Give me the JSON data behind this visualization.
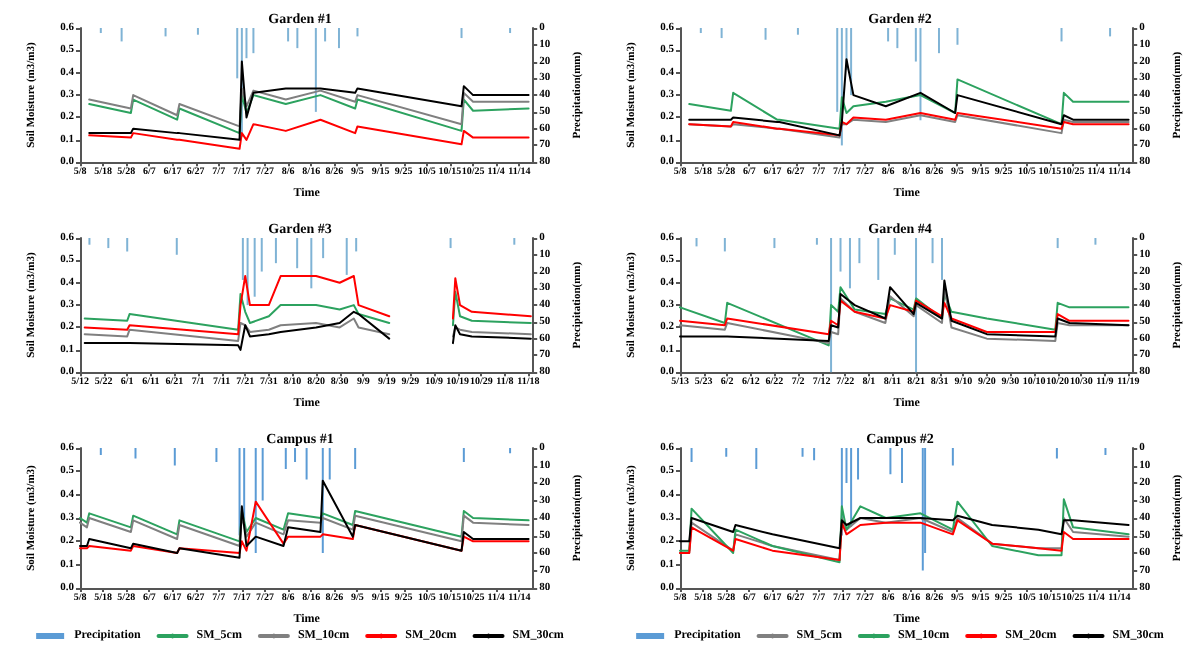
{
  "chart_data": [
    {
      "type": "line",
      "title": "Garden #1",
      "xlabel": "Time",
      "ylabel": "Soil Moisture (m3/m3)",
      "y2label": "Precipitation(mm)",
      "marker": "none",
      "line_style": "solid",
      "grid": false,
      "xlim": [
        "--05-08",
        "--11-20"
      ],
      "xticks": [
        {
          "value": "--05-08",
          "label": "5/8"
        },
        {
          "value": "--05-18",
          "label": "5/18"
        },
        {
          "value": "--05-28",
          "label": "5/28"
        },
        {
          "value": "--06-07",
          "label": "6/7"
        },
        {
          "value": "--06-17",
          "label": "6/17"
        },
        {
          "value": "--06-27",
          "label": "6/27"
        },
        {
          "value": "--07-07",
          "label": "7/7"
        },
        {
          "value": "--07-17",
          "label": "7/17"
        },
        {
          "value": "--07-27",
          "label": "7/27"
        },
        {
          "value": "--08-06",
          "label": "8/6"
        },
        {
          "value": "--08-16",
          "label": "8/16"
        },
        {
          "value": "--08-26",
          "label": "8/26"
        },
        {
          "value": "--09-05",
          "label": "9/5"
        },
        {
          "value": "--09-15",
          "label": "9/15"
        },
        {
          "value": "--09-25",
          "label": "9/25"
        },
        {
          "value": "--10-05",
          "label": "10/5"
        },
        {
          "value": "--10-15",
          "label": "10/15"
        },
        {
          "value": "--10-25",
          "label": "10/25"
        },
        {
          "value": "--11-04",
          "label": "11/4"
        },
        {
          "value": "--11-14",
          "label": "11/14"
        }
      ],
      "ylim": [
        0,
        0.6
      ],
      "yticks": [
        {
          "value": 0,
          "label": "0.0"
        },
        {
          "value": 0.1,
          "label": "0.1"
        },
        {
          "value": 0.2,
          "label": "0.2"
        },
        {
          "value": 0.3,
          "label": "0.3"
        },
        {
          "value": 0.4,
          "label": "0.4"
        },
        {
          "value": 0.5,
          "label": "0.5"
        },
        {
          "value": 0.6,
          "label": "0.6"
        }
      ],
      "y2lim": [
        80,
        0
      ],
      "y2ticks": [
        0,
        10,
        20,
        30,
        40,
        50,
        60,
        70,
        80
      ],
      "x": [
        "--05-12",
        "--05-30",
        "--05-31",
        "--06-19",
        "--06-20",
        "--07-16",
        "--07-17",
        "--07-19",
        "--07-22",
        "--08-05",
        "--08-20",
        "--09-04",
        "--09-05",
        "--10-20",
        "--10-21",
        "--10-25",
        "--11-18"
      ],
      "series": [
        {
          "type": "bar",
          "axis": "y2",
          "color": "#7fb3d5",
          "x": [
            "--05-17",
            "--05-26",
            "--06-14",
            "--06-28",
            "--07-15",
            "--07-17",
            "--07-19",
            "--07-22",
            "--08-06",
            "--08-10",
            "--08-18",
            "--08-22",
            "--08-28",
            "--09-05",
            "--10-20",
            "--11-10"
          ],
          "values": [
            3,
            8,
            5,
            4,
            30,
            65,
            18,
            15,
            8,
            12,
            50,
            8,
            12,
            5,
            6,
            3
          ]
        },
        {
          "color": "#2ca25f",
          "values": [
            0.26,
            0.22,
            0.28,
            0.19,
            0.24,
            0.13,
            0.3,
            0.22,
            0.3,
            0.26,
            0.3,
            0.24,
            0.28,
            0.14,
            0.28,
            0.23,
            0.24
          ]
        },
        {
          "color": "#808080",
          "values": [
            0.28,
            0.24,
            0.3,
            0.21,
            0.26,
            0.16,
            0.33,
            0.25,
            0.32,
            0.28,
            0.32,
            0.27,
            0.3,
            0.17,
            0.31,
            0.27,
            0.27
          ]
        },
        {
          "color": "#ff0000",
          "values": [
            0.12,
            0.11,
            0.13,
            0.1,
            0.1,
            0.06,
            0.13,
            0.1,
            0.17,
            0.14,
            0.19,
            0.13,
            0.16,
            0.08,
            0.14,
            0.11,
            0.11
          ]
        },
        {
          "color": "#000000",
          "values": [
            0.13,
            0.13,
            0.15,
            0.13,
            0.13,
            0.1,
            0.45,
            0.2,
            0.31,
            0.33,
            0.33,
            0.31,
            0.33,
            0.25,
            0.34,
            0.3,
            0.3
          ]
        }
      ]
    },
    {
      "type": "line",
      "title": "Garden #2",
      "xlabel": "Time",
      "ylabel": "Soil Moisture (m3/m3)",
      "y2label": "Precipitation(mm)",
      "marker": "none",
      "line_style": "solid",
      "grid": false,
      "xlim": [
        "--05-08",
        "--11-20"
      ],
      "xticks": [
        {
          "value": "--05-08",
          "label": "5/8"
        },
        {
          "value": "--05-18",
          "label": "5/18"
        },
        {
          "value": "--05-28",
          "label": "5/28"
        },
        {
          "value": "--06-07",
          "label": "6/7"
        },
        {
          "value": "--06-17",
          "label": "6/17"
        },
        {
          "value": "--06-27",
          "label": "6/27"
        },
        {
          "value": "--07-07",
          "label": "7/7"
        },
        {
          "value": "--07-17",
          "label": "7/17"
        },
        {
          "value": "--07-27",
          "label": "7/27"
        },
        {
          "value": "--08-06",
          "label": "8/6"
        },
        {
          "value": "--08-16",
          "label": "8/16"
        },
        {
          "value": "--08-26",
          "label": "8/26"
        },
        {
          "value": "--09-05",
          "label": "9/5"
        },
        {
          "value": "--09-15",
          "label": "9/15"
        },
        {
          "value": "--09-25",
          "label": "9/25"
        },
        {
          "value": "--10-05",
          "label": "10/5"
        },
        {
          "value": "--10-15",
          "label": "10/15"
        },
        {
          "value": "--10-25",
          "label": "10/25"
        },
        {
          "value": "--11-04",
          "label": "11/4"
        },
        {
          "value": "--11-14",
          "label": "11/14"
        }
      ],
      "ylim": [
        0,
        0.6
      ],
      "yticks": [
        {
          "value": 0,
          "label": "0.0"
        },
        {
          "value": 0.1,
          "label": "0.1"
        },
        {
          "value": 0.2,
          "label": "0.2"
        },
        {
          "value": 0.3,
          "label": "0.3"
        },
        {
          "value": 0.4,
          "label": "0.4"
        },
        {
          "value": 0.5,
          "label": "0.5"
        },
        {
          "value": 0.6,
          "label": "0.6"
        }
      ],
      "y2lim": [
        80,
        0
      ],
      "y2ticks": [
        0,
        10,
        20,
        30,
        40,
        50,
        60,
        70,
        80
      ],
      "x": [
        "--05-12",
        "--05-30",
        "--05-31",
        "--06-19",
        "--06-20",
        "--07-16",
        "--07-17",
        "--07-19",
        "--07-22",
        "--08-05",
        "--08-20",
        "--09-04",
        "--09-05",
        "--10-20",
        "--10-21",
        "--10-25",
        "--11-18"
      ],
      "series": [
        {
          "type": "bar",
          "axis": "y2",
          "color": "#7fb3d5",
          "x": [
            "--05-17",
            "--05-26",
            "--06-14",
            "--06-28",
            "--07-15",
            "--07-17",
            "--07-19",
            "--07-21",
            "--08-06",
            "--08-10",
            "--08-18",
            "--08-20",
            "--08-28",
            "--09-05",
            "--10-20",
            "--11-10"
          ],
          "values": [
            3,
            6,
            7,
            4,
            50,
            70,
            25,
            40,
            8,
            12,
            20,
            55,
            15,
            10,
            8,
            5
          ]
        },
        {
          "color": "#2ca25f",
          "values": [
            0.26,
            0.23,
            0.31,
            0.19,
            0.19,
            0.15,
            0.29,
            0.22,
            0.25,
            0.27,
            0.3,
            0.22,
            0.37,
            0.17,
            0.31,
            0.27,
            0.27
          ]
        },
        {
          "color": "#808080",
          "values": [
            0.17,
            0.16,
            0.17,
            0.15,
            0.15,
            0.11,
            0.17,
            0.17,
            0.19,
            0.18,
            0.21,
            0.18,
            0.21,
            0.13,
            0.19,
            0.18,
            0.18
          ]
        },
        {
          "color": "#ff0000",
          "values": [
            0.17,
            0.16,
            0.18,
            0.15,
            0.15,
            0.12,
            0.18,
            0.17,
            0.2,
            0.19,
            0.22,
            0.19,
            0.22,
            0.15,
            0.18,
            0.17,
            0.17
          ]
        },
        {
          "color": "#000000",
          "values": [
            0.19,
            0.19,
            0.2,
            0.18,
            0.18,
            0.12,
            0.18,
            0.46,
            0.3,
            0.25,
            0.31,
            0.22,
            0.3,
            0.17,
            0.21,
            0.19,
            0.19
          ]
        }
      ]
    },
    {
      "type": "line",
      "title": "Garden #3",
      "xlabel": "Time",
      "ylabel": "Soil Moisture (m3/m3)",
      "y2label": "Precipitation(mm)",
      "marker": "none",
      "line_style": "solid",
      "grid": false,
      "xlim": [
        "--05-12",
        "--11-20"
      ],
      "xticks": [
        {
          "value": "--05-12",
          "label": "5/12"
        },
        {
          "value": "--05-22",
          "label": "5/22"
        },
        {
          "value": "--06-01",
          "label": "6/1"
        },
        {
          "value": "--06-11",
          "label": "6/11"
        },
        {
          "value": "--06-21",
          "label": "6/21"
        },
        {
          "value": "--07-01",
          "label": "7/1"
        },
        {
          "value": "--07-11",
          "label": "7/11"
        },
        {
          "value": "--07-21",
          "label": "7/21"
        },
        {
          "value": "--07-31",
          "label": "7/31"
        },
        {
          "value": "--08-10",
          "label": "8/10"
        },
        {
          "value": "--08-20",
          "label": "8/20"
        },
        {
          "value": "--08-30",
          "label": "8/30"
        },
        {
          "value": "--09-09",
          "label": "9/9"
        },
        {
          "value": "--09-19",
          "label": "9/19"
        },
        {
          "value": "--09-29",
          "label": "9/29"
        },
        {
          "value": "--10-09",
          "label": "10/9"
        },
        {
          "value": "--10-19",
          "label": "10/19"
        },
        {
          "value": "--10-29",
          "label": "10/29"
        },
        {
          "value": "--11-08",
          "label": "11/8"
        },
        {
          "value": "--11-18",
          "label": "11/18"
        }
      ],
      "ylim": [
        0,
        0.6
      ],
      "yticks": [
        {
          "value": 0,
          "label": "0.0"
        },
        {
          "value": 0.1,
          "label": "0.1"
        },
        {
          "value": 0.2,
          "label": "0.2"
        },
        {
          "value": 0.3,
          "label": "0.3"
        },
        {
          "value": 0.4,
          "label": "0.4"
        },
        {
          "value": 0.5,
          "label": "0.5"
        },
        {
          "value": 0.6,
          "label": "0.6"
        }
      ],
      "y2lim": [
        80,
        0
      ],
      "y2ticks": [
        0,
        10,
        20,
        30,
        40,
        50,
        60,
        70,
        80
      ],
      "x": [
        "--05-14",
        "--06-01",
        "--06-02",
        "--07-18",
        "--07-19",
        "--07-21",
        "--07-23",
        "--07-31",
        "--08-05",
        "--08-20",
        "--08-30",
        "--09-05",
        "--09-07",
        "--09-20",
        "--09-21",
        "--10-17",
        "--10-18",
        "--10-20",
        "--10-25",
        "--11-19"
      ],
      "series": [
        {
          "type": "bar",
          "axis": "y2",
          "color": "#7fb3d5",
          "x": [
            "--05-16",
            "--05-24",
            "--06-01",
            "--06-22",
            "--07-20",
            "--07-22",
            "--07-25",
            "--07-28",
            "--08-03",
            "--08-12",
            "--08-18",
            "--08-23",
            "--09-02",
            "--09-06",
            "--10-16",
            "--11-12"
          ],
          "values": [
            4,
            6,
            8,
            10,
            25,
            40,
            35,
            20,
            15,
            18,
            30,
            12,
            22,
            8,
            6,
            4
          ]
        },
        {
          "color": "#2ca25f",
          "values": [
            0.24,
            0.23,
            0.26,
            0.19,
            0.35,
            0.27,
            0.22,
            0.25,
            0.3,
            0.3,
            0.28,
            0.3,
            0.26,
            0.22,
            null,
            0.21,
            0.36,
            0.25,
            0.23,
            0.22
          ]
        },
        {
          "color": "#808080",
          "values": [
            0.17,
            0.16,
            0.19,
            0.14,
            0.22,
            0.21,
            0.18,
            0.19,
            0.21,
            0.22,
            0.2,
            0.24,
            0.2,
            0.17,
            null,
            0.16,
            0.2,
            0.19,
            0.18,
            0.17
          ]
        },
        {
          "color": "#ff0000",
          "values": [
            0.2,
            0.19,
            0.21,
            0.17,
            0.3,
            0.43,
            0.3,
            0.3,
            0.43,
            0.43,
            0.4,
            0.43,
            0.3,
            0.25,
            null,
            0.24,
            0.42,
            0.3,
            0.27,
            0.25
          ]
        },
        {
          "color": "#000000",
          "values": [
            0.13,
            0.13,
            0.13,
            0.12,
            0.1,
            0.21,
            0.16,
            0.17,
            0.18,
            0.2,
            0.22,
            0.27,
            0.26,
            0.15,
            null,
            0.13,
            0.21,
            0.17,
            0.16,
            0.15
          ]
        }
      ]
    },
    {
      "type": "line",
      "title": "Garden #4",
      "xlabel": "Time",
      "ylabel": "Soil Moisture (m3/m3)",
      "y2label": "Precipitation(mm)",
      "marker": "none",
      "line_style": "solid",
      "grid": false,
      "xlim": [
        "--05-13",
        "--11-21"
      ],
      "xticks": [
        {
          "value": "--05-13",
          "label": "5/13"
        },
        {
          "value": "--05-23",
          "label": "5/23"
        },
        {
          "value": "--06-02",
          "label": "6/2"
        },
        {
          "value": "--06-12",
          "label": "6/12"
        },
        {
          "value": "--06-22",
          "label": "6/22"
        },
        {
          "value": "--07-02",
          "label": "7/2"
        },
        {
          "value": "--07-12",
          "label": "7/12"
        },
        {
          "value": "--07-22",
          "label": "7/22"
        },
        {
          "value": "--08-01",
          "label": "8/1"
        },
        {
          "value": "--08-11",
          "label": "8/11"
        },
        {
          "value": "--08-21",
          "label": "8/21"
        },
        {
          "value": "--08-31",
          "label": "8/31"
        },
        {
          "value": "--09-10",
          "label": "9/10"
        },
        {
          "value": "--09-20",
          "label": "9/20"
        },
        {
          "value": "--09-30",
          "label": "9/30"
        },
        {
          "value": "--10-10",
          "label": "10/10"
        },
        {
          "value": "--10-20",
          "label": "10/20"
        },
        {
          "value": "--10-30",
          "label": "10/30"
        },
        {
          "value": "--11-09",
          "label": "11/9"
        },
        {
          "value": "--11-19",
          "label": "11/19"
        }
      ],
      "ylim": [
        0,
        0.6
      ],
      "yticks": [
        {
          "value": 0,
          "label": "0.0"
        },
        {
          "value": 0.1,
          "label": "0.1"
        },
        {
          "value": 0.2,
          "label": "0.2"
        },
        {
          "value": 0.3,
          "label": "0.3"
        },
        {
          "value": 0.4,
          "label": "0.4"
        },
        {
          "value": 0.5,
          "label": "0.5"
        },
        {
          "value": 0.6,
          "label": "0.6"
        }
      ],
      "y2lim": [
        80,
        0
      ],
      "y2ticks": [
        0,
        10,
        20,
        30,
        40,
        50,
        60,
        70,
        80
      ],
      "x": [
        "--05-13",
        "--06-01",
        "--06-02",
        "--07-15",
        "--07-16",
        "--07-19",
        "--07-20",
        "--07-26",
        "--08-08",
        "--08-10",
        "--08-20",
        "--08-21",
        "--09-01",
        "--09-02",
        "--09-05",
        "--09-20",
        "--10-19",
        "--10-20",
        "--10-25",
        "--11-19"
      ],
      "series": [
        {
          "type": "bar",
          "axis": "y2",
          "color": "#7fb3d5",
          "x": [
            "--05-20",
            "--06-01",
            "--06-22",
            "--07-10",
            "--07-16",
            "--07-20",
            "--07-24",
            "--07-28",
            "--08-05",
            "--08-12",
            "--08-21",
            "--08-28",
            "--09-01",
            "--10-20",
            "--11-05"
          ],
          "values": [
            5,
            8,
            6,
            4,
            80,
            20,
            30,
            15,
            25,
            10,
            80,
            15,
            25,
            6,
            4
          ]
        },
        {
          "color": "#2ca25f",
          "values": [
            0.29,
            0.22,
            0.31,
            0.12,
            0.3,
            0.27,
            0.38,
            0.28,
            0.26,
            0.33,
            0.28,
            0.33,
            0.24,
            0.35,
            0.27,
            0.24,
            0.19,
            0.31,
            0.29,
            0.29
          ]
        },
        {
          "color": "#808080",
          "values": [
            0.21,
            0.19,
            0.22,
            0.13,
            0.18,
            0.17,
            0.33,
            0.27,
            0.22,
            0.34,
            0.25,
            0.3,
            0.22,
            0.38,
            0.2,
            0.15,
            0.14,
            0.22,
            0.21,
            0.21
          ]
        },
        {
          "color": "#ff0000",
          "values": [
            0.23,
            0.21,
            0.24,
            0.17,
            0.23,
            0.21,
            0.32,
            0.27,
            0.24,
            0.3,
            0.27,
            0.32,
            0.25,
            0.31,
            0.24,
            0.18,
            0.18,
            0.26,
            0.23,
            0.23
          ]
        },
        {
          "color": "#000000",
          "values": [
            0.16,
            0.16,
            0.16,
            0.14,
            0.21,
            0.2,
            0.35,
            0.3,
            0.24,
            0.38,
            0.26,
            0.31,
            0.24,
            0.41,
            0.23,
            0.17,
            0.16,
            0.24,
            0.22,
            0.21
          ]
        }
      ]
    },
    {
      "type": "line",
      "title": "Campus #1",
      "xlabel": "Time",
      "ylabel": "Soil Moisture (m3/m3)",
      "y2label": "Precipitation(mm)",
      "marker": "none",
      "line_style": "solid",
      "grid": false,
      "legend": "bottom",
      "xlim": [
        "--05-08",
        "--11-20"
      ],
      "xticks": [
        {
          "value": "--05-08",
          "label": "5/8"
        },
        {
          "value": "--05-18",
          "label": "5/18"
        },
        {
          "value": "--05-28",
          "label": "5/28"
        },
        {
          "value": "--06-07",
          "label": "6/7"
        },
        {
          "value": "--06-17",
          "label": "6/17"
        },
        {
          "value": "--06-27",
          "label": "6/27"
        },
        {
          "value": "--07-07",
          "label": "7/7"
        },
        {
          "value": "--07-17",
          "label": "7/17"
        },
        {
          "value": "--07-27",
          "label": "7/27"
        },
        {
          "value": "--08-06",
          "label": "8/6"
        },
        {
          "value": "--08-16",
          "label": "8/16"
        },
        {
          "value": "--08-26",
          "label": "8/26"
        },
        {
          "value": "--09-05",
          "label": "9/5"
        },
        {
          "value": "--09-15",
          "label": "9/15"
        },
        {
          "value": "--09-25",
          "label": "9/25"
        },
        {
          "value": "--10-05",
          "label": "10/5"
        },
        {
          "value": "--10-15",
          "label": "10/15"
        },
        {
          "value": "--10-25",
          "label": "10/25"
        },
        {
          "value": "--11-04",
          "label": "11/4"
        },
        {
          "value": "--11-14",
          "label": "11/14"
        }
      ],
      "ylim": [
        0,
        0.6
      ],
      "yticks": [
        {
          "value": 0,
          "label": "0.0"
        },
        {
          "value": 0.1,
          "label": "0.1"
        },
        {
          "value": 0.2,
          "label": "0.2"
        },
        {
          "value": 0.3,
          "label": "0.3"
        },
        {
          "value": 0.4,
          "label": "0.4"
        },
        {
          "value": 0.5,
          "label": "0.5"
        },
        {
          "value": 0.6,
          "label": "0.6"
        }
      ],
      "y2lim": [
        80,
        0
      ],
      "y2ticks": [
        0,
        10,
        20,
        30,
        40,
        50,
        60,
        70,
        80
      ],
      "x": [
        "--05-08",
        "--05-11",
        "--05-12",
        "--05-30",
        "--05-31",
        "--06-19",
        "--06-20",
        "--07-16",
        "--07-17",
        "--07-19",
        "--07-23",
        "--08-04",
        "--08-06",
        "--08-20",
        "--08-21",
        "--09-03",
        "--09-04",
        "--10-20",
        "--10-21",
        "--10-25",
        "--11-18"
      ],
      "series": [
        {
          "name": "Precipitation",
          "type": "bar",
          "axis": "y2",
          "color": "#5b9bd5",
          "x": [
            "--05-17",
            "--06-01",
            "--06-18",
            "--07-06",
            "--07-16",
            "--07-18",
            "--07-23",
            "--07-26",
            "--08-05",
            "--08-09",
            "--08-14",
            "--08-21",
            "--08-24",
            "--09-04",
            "--10-21",
            "--11-10"
          ],
          "values": [
            4,
            6,
            10,
            8,
            50,
            45,
            60,
            30,
            12,
            8,
            18,
            60,
            18,
            12,
            8,
            3
          ]
        },
        {
          "name": "SM_5cm",
          "color": "#2ca25f",
          "values": [
            0.3,
            0.28,
            0.32,
            0.26,
            0.31,
            0.23,
            0.29,
            0.2,
            0.33,
            0.24,
            0.3,
            0.25,
            0.32,
            0.3,
            0.32,
            0.27,
            0.33,
            0.22,
            0.33,
            0.3,
            0.29
          ]
        },
        {
          "name": "SM_10cm",
          "color": "#808080",
          "values": [
            0.28,
            0.26,
            0.3,
            0.24,
            0.29,
            0.21,
            0.27,
            0.18,
            0.31,
            0.22,
            0.28,
            0.23,
            0.29,
            0.28,
            0.3,
            0.25,
            0.31,
            0.2,
            0.31,
            0.28,
            0.27
          ]
        },
        {
          "name": "SM_20cm",
          "color": "#ff0000",
          "values": [
            0.17,
            0.17,
            0.18,
            0.16,
            0.18,
            0.15,
            0.17,
            0.15,
            0.2,
            0.16,
            0.37,
            0.19,
            0.22,
            0.22,
            0.23,
            0.21,
            0.27,
            0.16,
            0.22,
            0.2,
            0.2
          ]
        },
        {
          "name": "SM_30cm",
          "color": "#000000",
          "values": [
            0.18,
            0.18,
            0.21,
            0.17,
            0.19,
            0.15,
            0.17,
            0.13,
            0.35,
            0.18,
            0.22,
            0.18,
            0.26,
            0.24,
            0.46,
            0.22,
            0.27,
            0.16,
            0.24,
            0.21,
            0.21
          ]
        }
      ]
    },
    {
      "type": "line",
      "title": "Campus #2",
      "xlabel": "Time",
      "ylabel": "Soil Moisture (m3/m3)",
      "y2label": "Precipitation(mm)",
      "marker": "none",
      "line_style": "solid",
      "grid": false,
      "legend": "bottom",
      "xlim": [
        "--05-08",
        "--11-20"
      ],
      "xticks": [
        {
          "value": "--05-08",
          "label": "5/8"
        },
        {
          "value": "--05-18",
          "label": "5/18"
        },
        {
          "value": "--05-28",
          "label": "5/28"
        },
        {
          "value": "--06-07",
          "label": "6/7"
        },
        {
          "value": "--06-17",
          "label": "6/17"
        },
        {
          "value": "--06-27",
          "label": "6/27"
        },
        {
          "value": "--07-07",
          "label": "7/7"
        },
        {
          "value": "--07-17",
          "label": "7/17"
        },
        {
          "value": "--07-27",
          "label": "7/27"
        },
        {
          "value": "--08-06",
          "label": "8/6"
        },
        {
          "value": "--08-16",
          "label": "8/16"
        },
        {
          "value": "--08-26",
          "label": "8/26"
        },
        {
          "value": "--09-05",
          "label": "9/5"
        },
        {
          "value": "--09-15",
          "label": "9/15"
        },
        {
          "value": "--09-25",
          "label": "9/25"
        },
        {
          "value": "--10-05",
          "label": "10/5"
        },
        {
          "value": "--10-15",
          "label": "10/15"
        },
        {
          "value": "--10-25",
          "label": "10/25"
        },
        {
          "value": "--11-04",
          "label": "11/4"
        },
        {
          "value": "--11-14",
          "label": "11/14"
        }
      ],
      "ylim": [
        0,
        0.6
      ],
      "yticks": [
        {
          "value": 0,
          "label": "0.0"
        },
        {
          "value": 0.1,
          "label": "0.1"
        },
        {
          "value": 0.2,
          "label": "0.2"
        },
        {
          "value": 0.3,
          "label": "0.3"
        },
        {
          "value": 0.4,
          "label": "0.4"
        },
        {
          "value": 0.5,
          "label": "0.5"
        },
        {
          "value": 0.6,
          "label": "0.6"
        }
      ],
      "y2lim": [
        80,
        0
      ],
      "y2ticks": [
        0,
        10,
        20,
        30,
        40,
        50,
        60,
        70,
        80
      ],
      "x": [
        "--05-08",
        "--05-12",
        "--05-13",
        "--05-31",
        "--06-01",
        "--06-17",
        "--07-16",
        "--07-17",
        "--07-19",
        "--07-25",
        "--08-05",
        "--08-20",
        "--09-03",
        "--09-05",
        "--09-20",
        "--10-10",
        "--10-20",
        "--10-21",
        "--10-25",
        "--11-18"
      ],
      "series": [
        {
          "name": "Precipitation",
          "type": "bar",
          "axis": "y2",
          "color": "#5b9bd5",
          "x": [
            "--05-13",
            "--05-28",
            "--06-10",
            "--06-30",
            "--07-05",
            "--07-17",
            "--07-19",
            "--07-21",
            "--07-24",
            "--08-07",
            "--08-12",
            "--08-21",
            "--08-22",
            "--09-03",
            "--10-18",
            "--11-08"
          ],
          "values": [
            8,
            5,
            12,
            5,
            7,
            50,
            20,
            45,
            18,
            15,
            20,
            70,
            60,
            10,
            6,
            4
          ]
        },
        {
          "name": "SM_5cm",
          "color": "#808080",
          "values": [
            0.15,
            0.15,
            0.28,
            0.16,
            0.23,
            0.18,
            0.12,
            0.3,
            0.25,
            0.3,
            0.28,
            0.3,
            0.24,
            0.3,
            0.19,
            0.17,
            0.17,
            0.3,
            0.24,
            0.22
          ]
        },
        {
          "name": "SM_10cm",
          "color": "#2ca25f",
          "values": [
            0.16,
            0.16,
            0.34,
            0.15,
            0.25,
            0.18,
            0.11,
            0.35,
            0.25,
            0.35,
            0.3,
            0.32,
            0.25,
            0.37,
            0.18,
            0.14,
            0.14,
            0.38,
            0.26,
            0.23
          ]
        },
        {
          "name": "SM_20cm",
          "color": "#ff0000",
          "values": [
            0.15,
            0.15,
            0.26,
            0.16,
            0.21,
            0.16,
            0.12,
            0.28,
            0.23,
            0.27,
            0.28,
            0.28,
            0.23,
            0.29,
            0.19,
            0.17,
            0.16,
            0.24,
            0.21,
            0.21
          ]
        },
        {
          "name": "SM_30cm",
          "color": "#000000",
          "values": [
            0.2,
            0.2,
            0.3,
            0.24,
            0.27,
            0.23,
            0.17,
            0.29,
            0.27,
            0.3,
            0.3,
            0.3,
            0.29,
            0.31,
            0.27,
            0.25,
            0.23,
            0.29,
            0.29,
            0.27
          ]
        }
      ]
    }
  ]
}
